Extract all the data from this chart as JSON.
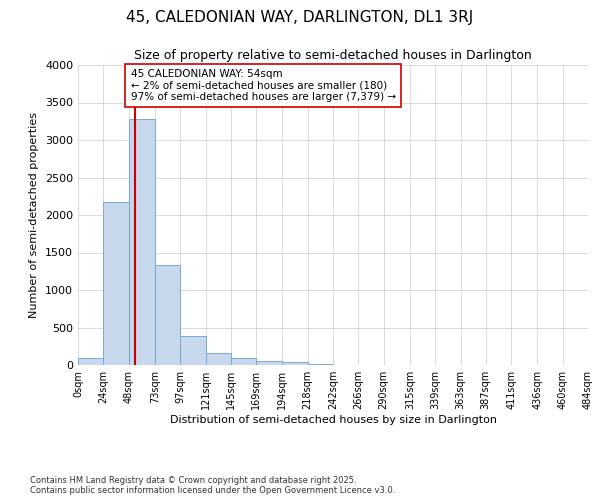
{
  "title": "45, CALEDONIAN WAY, DARLINGTON, DL1 3RJ",
  "subtitle": "Size of property relative to semi-detached houses in Darlington",
  "xlabel": "Distribution of semi-detached houses by size in Darlington",
  "ylabel": "Number of semi-detached properties",
  "bin_edges": [
    0,
    24,
    48,
    73,
    97,
    121,
    145,
    169,
    194,
    218,
    242,
    266,
    290,
    315,
    339,
    363,
    387,
    411,
    436,
    460,
    484
  ],
  "bar_heights": [
    100,
    2175,
    3280,
    1340,
    390,
    165,
    100,
    55,
    35,
    15,
    5,
    0,
    0,
    0,
    0,
    0,
    0,
    0,
    0,
    0
  ],
  "bar_color": "#c8d8ec",
  "bar_edge_color": "#7aaacf",
  "property_size": 54,
  "red_line_color": "#cc0000",
  "annotation_text": "45 CALEDONIAN WAY: 54sqm\n← 2% of semi-detached houses are smaller (180)\n97% of semi-detached houses are larger (7,379) →",
  "annotation_box_color": "#ffffff",
  "annotation_box_edge_color": "#cc0000",
  "ylim": [
    0,
    4000
  ],
  "yticks": [
    0,
    500,
    1000,
    1500,
    2000,
    2500,
    3000,
    3500,
    4000
  ],
  "bg_color": "#ffffff",
  "grid_color": "#cccccc",
  "footer_text": "Contains HM Land Registry data © Crown copyright and database right 2025.\nContains public sector information licensed under the Open Government Licence v3.0.",
  "title_fontsize": 11,
  "subtitle_fontsize": 9,
  "tick_label_fontsize": 7,
  "ylabel_fontsize": 8,
  "xlabel_fontsize": 8,
  "footer_fontsize": 6
}
